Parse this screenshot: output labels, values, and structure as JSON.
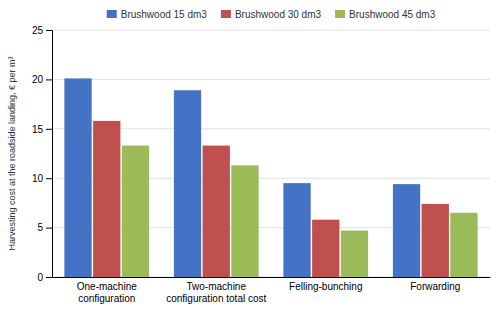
{
  "chart_data": {
    "type": "bar",
    "categories": [
      "One-machine\nconfiguration",
      "Two-machine\nconfiguration total cost",
      "Felling-bunching",
      "Forwarding"
    ],
    "series": [
      {
        "name": "Brushwood 15 dm3",
        "color": "#4472C4",
        "values": [
          20.1,
          18.9,
          9.5,
          9.4
        ]
      },
      {
        "name": "Brushwood 30 dm3",
        "color": "#C0504D",
        "values": [
          15.8,
          13.3,
          5.8,
          7.4
        ]
      },
      {
        "name": "Brushwood 45 dm3",
        "color": "#9BBB59",
        "values": [
          13.3,
          11.3,
          4.7,
          6.5
        ]
      }
    ],
    "ylabel": "Harvesting cost at the roadside landing, € per m³",
    "ylim": [
      0,
      25
    ],
    "yticks": [
      0,
      5,
      10,
      15,
      20,
      25
    ],
    "grid": true,
    "legend": "top"
  }
}
